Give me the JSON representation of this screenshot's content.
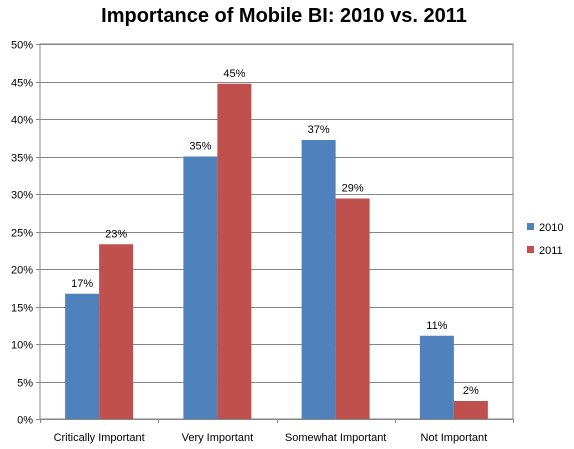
{
  "chart_data": {
    "type": "bar",
    "title": "Importance of Mobile BI: 2010 vs. 2011",
    "xlabel": "",
    "ylabel": "",
    "ylim": [
      0,
      50
    ],
    "y_ticks": [
      "0%",
      "5%",
      "10%",
      "15%",
      "20%",
      "25%",
      "30%",
      "35%",
      "40%",
      "45%",
      "50%"
    ],
    "y_tick_values": [
      0,
      5,
      10,
      15,
      20,
      25,
      30,
      35,
      40,
      45,
      50
    ],
    "grid": "horizontal",
    "legend_position": "right",
    "categories": [
      "Critically Important",
      "Very Important",
      "Somewhat Important",
      "Not Important"
    ],
    "series": [
      {
        "name": "2010",
        "color": "#4f81bd",
        "values": [
          16.7,
          35.0,
          37.2,
          11.1
        ],
        "labels": [
          "17%",
          "35%",
          "37%",
          "11%"
        ]
      },
      {
        "name": "2011",
        "color": "#c0504d",
        "values": [
          23.3,
          44.7,
          29.4,
          2.4
        ],
        "labels": [
          "23%",
          "45%",
          "29%",
          "2%"
        ]
      }
    ]
  }
}
